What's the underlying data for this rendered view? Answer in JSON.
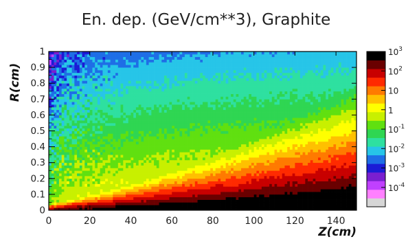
{
  "chart_data": {
    "type": "heatmap",
    "title": "En. dep. (GeV/cm**3), Graphite",
    "xlabel": "Z(cm)",
    "ylabel": "R(cm)",
    "xlim": [
      0,
      150
    ],
    "ylim": [
      0,
      1
    ],
    "x_ticks": [
      {
        "value": 0,
        "label": "0"
      },
      {
        "value": 20,
        "label": "20"
      },
      {
        "value": 40,
        "label": "40"
      },
      {
        "value": 60,
        "label": "60"
      },
      {
        "value": 80,
        "label": "80"
      },
      {
        "value": 100,
        "label": "100"
      },
      {
        "value": 120,
        "label": "120"
      },
      {
        "value": 140,
        "label": "140"
      }
    ],
    "y_ticks": [
      {
        "value": 0,
        "label": "0"
      },
      {
        "value": 0.1,
        "label": "0.1"
      },
      {
        "value": 0.2,
        "label": "0.2"
      },
      {
        "value": 0.3,
        "label": "0.3"
      },
      {
        "value": 0.4,
        "label": "0.4"
      },
      {
        "value": 0.5,
        "label": "0.5"
      },
      {
        "value": 0.6,
        "label": "0.6"
      },
      {
        "value": 0.7,
        "label": "0.7"
      },
      {
        "value": 0.8,
        "label": "0.8"
      },
      {
        "value": 0.9,
        "label": "0.9"
      },
      {
        "value": 1,
        "label": "1"
      }
    ],
    "z_scale": "log",
    "z_range": [
      1e-05,
      1000
    ],
    "colorbar": {
      "palette": [
        "#d6d6d6",
        "#ff80ff",
        "#c040ff",
        "#7a1fd0",
        "#1b1bd6",
        "#1e6ee6",
        "#27c5e8",
        "#2ee0a0",
        "#2fd652",
        "#60e010",
        "#c8f000",
        "#ffff00",
        "#ffc000",
        "#ff7a00",
        "#ff2a00",
        "#c80000",
        "#6a0000",
        "#000000"
      ],
      "ticks": [
        {
          "value": 0.0001,
          "base": "10",
          "exp": "-4"
        },
        {
          "value": 0.001,
          "base": "10",
          "exp": "-3"
        },
        {
          "value": 0.01,
          "base": "10",
          "exp": "-2"
        },
        {
          "value": 0.1,
          "base": "10",
          "exp": "-1"
        },
        {
          "value": 1,
          "base": "1",
          "exp": ""
        },
        {
          "value": 10,
          "base": "10",
          "exp": ""
        },
        {
          "value": 100,
          "base": "10",
          "exp": "2"
        },
        {
          "value": 1000,
          "base": "10",
          "exp": "3"
        }
      ]
    },
    "grid": false,
    "noise_level": 0.35
  }
}
